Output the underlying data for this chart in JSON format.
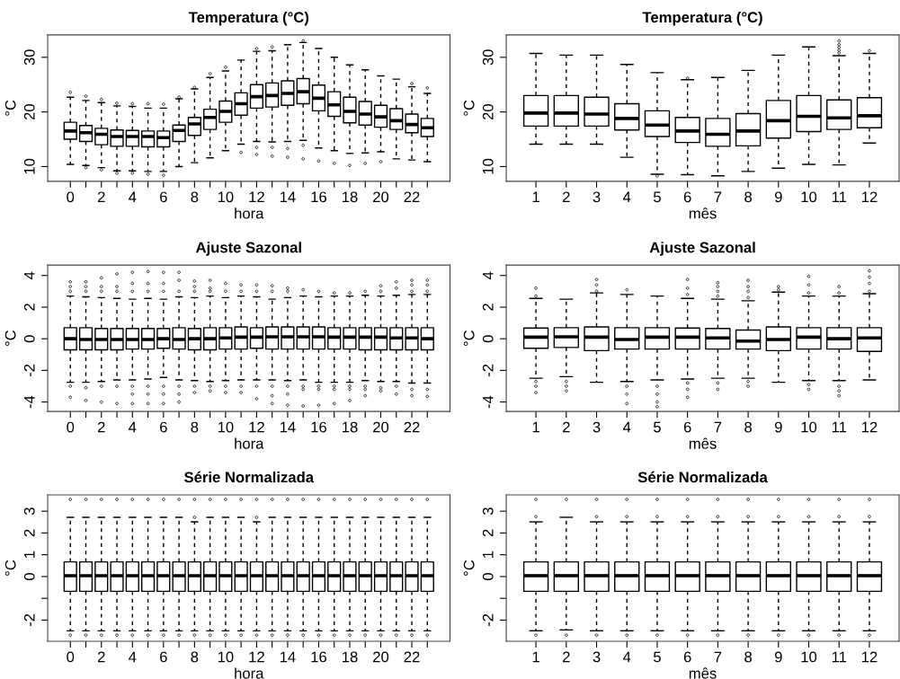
{
  "chart_data": [
    {
      "type": "box",
      "title": "Temperatura (°C)",
      "xlabel": "hora",
      "ylabel": "°C",
      "categories": [
        "0",
        null,
        "2",
        null,
        "4",
        null,
        "6",
        null,
        "8",
        null,
        "10",
        null,
        "12",
        null,
        "14",
        null,
        "16",
        null,
        "18",
        null,
        "20",
        null,
        "22",
        null
      ],
      "ylim": [
        7.3,
        34.1
      ],
      "yticks": [
        10,
        20,
        30
      ],
      "boxes": [
        {
          "low": 10.4,
          "q1": 15.0,
          "median": 16.5,
          "q3": 18.1,
          "high": 22.7,
          "outliers": [
            23.6
          ]
        },
        {
          "low": 10.2,
          "q1": 14.6,
          "median": 16.2,
          "q3": 17.5,
          "high": 22.1,
          "outliers": [
            22.9,
            9.8
          ]
        },
        {
          "low": 9.8,
          "q1": 14.0,
          "median": 15.9,
          "q3": 17.0,
          "high": 21.7,
          "outliers": [
            22.3,
            9.4
          ]
        },
        {
          "low": 9.2,
          "q1": 13.7,
          "median": 15.5,
          "q3": 16.7,
          "high": 21.1,
          "outliers": [
            21.6,
            8.8
          ]
        },
        {
          "low": 9.2,
          "q1": 13.7,
          "median": 15.5,
          "q3": 16.6,
          "high": 21.0,
          "outliers": [
            21.5,
            8.8
          ]
        },
        {
          "low": 9.1,
          "q1": 13.6,
          "median": 15.5,
          "q3": 16.5,
          "high": 20.7,
          "outliers": [
            21.5,
            8.6
          ]
        },
        {
          "low": 9.1,
          "q1": 13.6,
          "median": 15.3,
          "q3": 16.5,
          "high": 20.7,
          "outliers": [
            21.4,
            8.4
          ]
        },
        {
          "low": 10.0,
          "q1": 14.6,
          "median": 16.6,
          "q3": 17.6,
          "high": 22.4,
          "outliers": [
            22.7
          ]
        },
        {
          "low": 10.7,
          "q1": 15.7,
          "median": 17.8,
          "q3": 19.0,
          "high": 24.2,
          "outliers": [
            24.5
          ]
        },
        {
          "low": 11.6,
          "q1": 16.8,
          "median": 19.0,
          "q3": 20.5,
          "high": 26.3,
          "outliers": [
            27.0
          ]
        },
        {
          "low": 12.9,
          "q1": 18.1,
          "median": 20.1,
          "q3": 22.0,
          "high": 27.5,
          "outliers": [
            28.2
          ]
        },
        {
          "low": 14.1,
          "q1": 19.4,
          "median": 21.5,
          "q3": 23.5,
          "high": 29.5,
          "outliers": [
            12.6
          ]
        },
        {
          "low": 14.6,
          "q1": 20.7,
          "median": 22.8,
          "q3": 25.0,
          "high": 31.1,
          "outliers": [
            31.6,
            13.5,
            12.2
          ]
        },
        {
          "low": 14.5,
          "q1": 20.9,
          "median": 23.0,
          "q3": 25.3,
          "high": 31.2,
          "outliers": [
            31.9,
            13.5,
            11.9
          ]
        },
        {
          "low": 14.6,
          "q1": 21.2,
          "median": 23.4,
          "q3": 25.7,
          "high": 32.3,
          "outliers": [
            13.3,
            11.7
          ]
        },
        {
          "low": 14.8,
          "q1": 21.5,
          "median": 23.7,
          "q3": 26.1,
          "high": 32.7,
          "outliers": [
            33.0,
            13.9,
            11.4
          ]
        },
        {
          "low": 13.4,
          "q1": 20.2,
          "median": 22.5,
          "q3": 24.9,
          "high": 31.6,
          "outliers": [
            11.0
          ]
        },
        {
          "low": 12.9,
          "q1": 19.2,
          "median": 21.3,
          "q3": 23.7,
          "high": 30.0,
          "outliers": [
            10.6
          ]
        },
        {
          "low": 12.4,
          "q1": 18.0,
          "median": 20.1,
          "q3": 22.7,
          "high": 28.6,
          "outliers": [
            10.2
          ]
        },
        {
          "low": 12.5,
          "q1": 17.6,
          "median": 19.6,
          "q3": 21.9,
          "high": 27.7,
          "outliers": [
            10.6
          ]
        },
        {
          "low": 12.7,
          "q1": 17.2,
          "median": 19.1,
          "q3": 21.2,
          "high": 26.6,
          "outliers": [
            10.9
          ]
        },
        {
          "low": 11.4,
          "q1": 16.8,
          "median": 18.4,
          "q3": 20.6,
          "high": 26.0
        },
        {
          "low": 11.2,
          "q1": 16.2,
          "median": 17.7,
          "q3": 19.6,
          "high": 24.6,
          "outliers": [
            25.2
          ]
        },
        {
          "low": 10.9,
          "q1": 15.5,
          "median": 17.1,
          "q3": 18.8,
          "high": 23.4,
          "outliers": [
            24.4
          ]
        }
      ]
    },
    {
      "type": "box",
      "title": "Temperatura (°C)",
      "xlabel": "mês",
      "ylabel": "°C",
      "categories": [
        "1",
        "2",
        "3",
        "4",
        "5",
        "6",
        "7",
        "8",
        "9",
        "10",
        "11",
        "12"
      ],
      "ylim": [
        7.3,
        34.1
      ],
      "yticks": [
        10,
        20,
        30
      ],
      "boxes": [
        {
          "low": 14.1,
          "q1": 17.4,
          "median": 19.8,
          "q3": 23.0,
          "high": 30.7
        },
        {
          "low": 14.1,
          "q1": 17.4,
          "median": 19.8,
          "q3": 23.0,
          "high": 30.4
        },
        {
          "low": 14.1,
          "q1": 17.4,
          "median": 19.6,
          "q3": 22.7,
          "high": 30.4
        },
        {
          "low": 11.7,
          "q1": 16.7,
          "median": 18.8,
          "q3": 21.5,
          "high": 28.7
        },
        {
          "low": 8.6,
          "q1": 15.5,
          "median": 17.6,
          "q3": 20.2,
          "high": 27.2,
          "outliers": [
            8.3
          ]
        },
        {
          "low": 8.5,
          "q1": 14.4,
          "median": 16.5,
          "q3": 19.0,
          "high": 25.9,
          "outliers": [
            26.2
          ]
        },
        {
          "low": 8.3,
          "q1": 13.7,
          "median": 15.9,
          "q3": 18.8,
          "high": 26.3
        },
        {
          "low": 9.1,
          "q1": 13.8,
          "median": 16.5,
          "q3": 19.7,
          "high": 27.6
        },
        {
          "low": 9.7,
          "q1": 15.2,
          "median": 18.4,
          "q3": 22.1,
          "high": 30.4
        },
        {
          "low": 10.4,
          "q1": 16.4,
          "median": 19.2,
          "q3": 23.0,
          "high": 31.9
        },
        {
          "low": 10.3,
          "q1": 16.8,
          "median": 18.9,
          "q3": 22.2,
          "high": 30.3,
          "outliers": [
            30.8,
            31.3,
            31.8,
            32.3,
            33.0
          ]
        },
        {
          "low": 14.3,
          "q1": 17.1,
          "median": 19.3,
          "q3": 22.6,
          "high": 30.7,
          "outliers": [
            31.2
          ]
        }
      ]
    },
    {
      "type": "box",
      "title": "Ajuste Sazonal",
      "xlabel": "hora",
      "ylabel": "°C",
      "categories": [
        "0",
        null,
        "2",
        null,
        "4",
        null,
        "6",
        null,
        "8",
        null,
        "10",
        null,
        "12",
        null,
        "14",
        null,
        "16",
        null,
        "18",
        null,
        "20",
        null,
        "22",
        null
      ],
      "ylim": [
        -4.6,
        4.66
      ],
      "yticks": [
        -4,
        -2,
        0,
        2,
        4
      ],
      "boxes": [
        {
          "low": -2.75,
          "q1": -0.7,
          "median": 0,
          "q3": 0.7,
          "high": 2.7,
          "outliers": [
            3.0,
            3.3,
            3.6,
            -3.0,
            -3.7
          ]
        },
        {
          "low": -2.75,
          "q1": -0.7,
          "median": -0.05,
          "q3": 0.7,
          "high": 2.65,
          "outliers": [
            3.0,
            3.3,
            3.6,
            -3.1,
            -3.9
          ]
        },
        {
          "low": -2.7,
          "q1": -0.7,
          "median": -0.05,
          "q3": 0.65,
          "high": 2.6,
          "outliers": [
            3.0,
            3.3,
            3.85,
            -3.0,
            -4.0
          ]
        },
        {
          "low": -2.6,
          "q1": -0.7,
          "median": -0.05,
          "q3": 0.65,
          "high": 2.55,
          "outliers": [
            3.0,
            3.3,
            4.1,
            -3.0,
            -4.1
          ]
        },
        {
          "low": -2.6,
          "q1": -0.65,
          "median": -0.05,
          "q3": 0.65,
          "high": 2.5,
          "outliers": [
            3.0,
            3.5,
            4.2,
            -3.0,
            -3.5,
            -4.1
          ]
        },
        {
          "low": -2.55,
          "q1": -0.65,
          "median": -0.05,
          "q3": 0.65,
          "high": 2.55,
          "outliers": [
            3.0,
            3.5,
            4.25,
            -3.0,
            -3.5,
            -4.1
          ]
        },
        {
          "low": -2.45,
          "q1": -0.6,
          "median": 0,
          "q3": 0.65,
          "high": 2.5,
          "outliers": [
            3.0,
            3.5,
            4.2,
            -3.0,
            -3.5,
            -4.1
          ]
        },
        {
          "low": -2.6,
          "q1": -0.65,
          "median": -0.05,
          "q3": 0.7,
          "high": 2.65,
          "outliers": [
            3.0,
            3.7,
            4.2,
            -3.0,
            -3.5,
            -4.0
          ]
        },
        {
          "low": -2.65,
          "q1": -0.7,
          "median": 0,
          "q3": 0.65,
          "high": 2.6,
          "outliers": [
            3.0,
            3.3,
            3.65,
            -3.0,
            -3.4
          ]
        },
        {
          "low": -2.7,
          "q1": -0.7,
          "median": 0,
          "q3": 0.7,
          "high": 2.7,
          "outliers": [
            3.0,
            3.2,
            3.7,
            -3.0,
            -3.3
          ]
        },
        {
          "low": -2.65,
          "q1": -0.65,
          "median": 0.05,
          "q3": 0.7,
          "high": 2.6,
          "outliers": [
            3.0,
            3.5,
            -3.0,
            -3.4
          ]
        },
        {
          "low": -2.6,
          "q1": -0.65,
          "median": 0.1,
          "q3": 0.75,
          "high": 2.7,
          "outliers": [
            3.0,
            3.4,
            -3.0,
            -3.4
          ]
        },
        {
          "low": -2.6,
          "q1": -0.6,
          "median": 0.1,
          "q3": 0.7,
          "high": 2.65,
          "outliers": [
            3.0,
            3.4,
            -3.0,
            -3.8
          ]
        },
        {
          "low": -2.6,
          "q1": -0.65,
          "median": 0.12,
          "q3": 0.75,
          "high": 2.5,
          "outliers": [
            3.0,
            3.35,
            -3.0,
            -3.6,
            -4.1
          ]
        },
        {
          "low": -2.65,
          "q1": -0.65,
          "median": 0.12,
          "q3": 0.75,
          "high": 2.6,
          "outliers": [
            3.0,
            3.2,
            -3.0,
            -3.5,
            -4.2
          ]
        },
        {
          "low": -2.6,
          "q1": -0.65,
          "median": 0.12,
          "q3": 0.75,
          "high": 2.7,
          "outliers": [
            3.1,
            -3.0,
            -3.2,
            -4.25
          ]
        },
        {
          "low": -2.75,
          "q1": -0.65,
          "median": 0.12,
          "q3": 0.75,
          "high": 2.65,
          "outliers": [
            3.0,
            -3.0,
            -3.2,
            -4.2
          ]
        },
        {
          "low": -2.75,
          "q1": -0.65,
          "median": 0.1,
          "q3": 0.7,
          "high": 2.7,
          "outliers": [
            2.9,
            -3.0,
            -3.2,
            -4.1
          ]
        },
        {
          "low": -2.75,
          "q1": -0.65,
          "median": 0.1,
          "q3": 0.7,
          "high": 2.7,
          "outliers": [
            2.9,
            -3.0,
            -3.2,
            -3.9
          ]
        },
        {
          "low": -2.65,
          "q1": -0.7,
          "median": 0.1,
          "q3": 0.7,
          "high": 2.75,
          "outliers": [
            3.0,
            -3.0,
            -3.2,
            -3.6
          ]
        },
        {
          "low": -2.7,
          "q1": -0.7,
          "median": 0.1,
          "q3": 0.7,
          "high": 2.7,
          "outliers": [
            3.0,
            3.35,
            -3.1,
            -3.3
          ]
        },
        {
          "low": -2.7,
          "q1": -0.7,
          "median": 0.05,
          "q3": 0.7,
          "high": 2.75,
          "outliers": [
            3.2,
            3.6,
            -3.0,
            -3.5
          ]
        },
        {
          "low": -2.8,
          "q1": -0.7,
          "median": 0.05,
          "q3": 0.7,
          "high": 2.8,
          "outliers": [
            3.0,
            3.4,
            3.7,
            -3.2,
            -3.6
          ]
        },
        {
          "low": -2.8,
          "q1": -0.7,
          "median": 0,
          "q3": 0.7,
          "high": 2.8,
          "outliers": [
            3.0,
            3.4,
            3.7,
            -3.2,
            -3.65
          ]
        }
      ]
    },
    {
      "type": "box",
      "title": "Ajuste Sazonal",
      "xlabel": "mês",
      "ylabel": "°C",
      "categories": [
        "1",
        "2",
        "3",
        "4",
        "5",
        "6",
        "7",
        "8",
        "9",
        "10",
        "11",
        "12"
      ],
      "ylim": [
        -4.6,
        4.66
      ],
      "yticks": [
        -4,
        -2,
        0,
        2,
        4
      ],
      "boxes": [
        {
          "low": -2.5,
          "q1": -0.6,
          "median": 0.1,
          "q3": 0.68,
          "high": 2.55,
          "outliers": [
            2.7,
            3.2,
            -2.7,
            -3.0,
            -3.4
          ]
        },
        {
          "low": -2.4,
          "q1": -0.55,
          "median": 0.12,
          "q3": 0.7,
          "high": 2.5,
          "outliers": [
            -2.7,
            -3.0,
            -3.3
          ]
        },
        {
          "low": -2.75,
          "q1": -0.75,
          "median": 0.1,
          "q3": 0.75,
          "high": 2.9,
          "outliers": [
            3.0,
            3.4,
            3.75
          ]
        },
        {
          "low": -2.7,
          "q1": -0.65,
          "median": -0.05,
          "q3": 0.7,
          "high": 2.8,
          "outliers": [
            3.1,
            -3.0,
            -3.5,
            -4.1
          ]
        },
        {
          "low": -2.6,
          "q1": -0.65,
          "median": 0.1,
          "q3": 0.7,
          "high": 2.7,
          "outliers": [
            -3.0,
            -3.5,
            -4.0,
            -4.3
          ]
        },
        {
          "low": -2.55,
          "q1": -0.65,
          "median": 0.1,
          "q3": 0.68,
          "high": 2.55,
          "outliers": [
            2.8,
            3.2,
            3.75,
            -2.8,
            -3.2,
            -3.7
          ]
        },
        {
          "low": -2.5,
          "q1": -0.65,
          "median": 0.05,
          "q3": 0.65,
          "high": 2.5,
          "outliers": [
            2.7,
            3.0,
            3.3,
            3.55,
            -2.8,
            -3.2
          ]
        },
        {
          "low": -2.5,
          "q1": -0.65,
          "median": -0.15,
          "q3": 0.55,
          "high": 2.4,
          "outliers": [
            2.6,
            3.0,
            3.3,
            3.7,
            -2.7,
            -3.0
          ]
        },
        {
          "low": -2.75,
          "q1": -0.75,
          "median": -0.05,
          "q3": 0.75,
          "high": 2.95,
          "outliers": [
            3.1,
            3.3
          ]
        },
        {
          "low": -2.65,
          "q1": -0.65,
          "median": 0.1,
          "q3": 0.7,
          "high": 2.7,
          "outliers": [
            2.9,
            3.4,
            3.95,
            -2.9,
            -3.2
          ]
        },
        {
          "low": -2.65,
          "q1": -0.65,
          "median": 0,
          "q3": 0.7,
          "high": 2.7,
          "outliers": [
            2.9,
            3.3,
            -3.0,
            -3.3,
            -3.6
          ]
        },
        {
          "low": -2.6,
          "q1": -0.8,
          "median": 0.05,
          "q3": 0.7,
          "high": 2.85,
          "outliers": [
            3.0,
            3.5,
            3.9,
            4.3
          ]
        }
      ]
    },
    {
      "type": "box",
      "title": "Série Normalizada",
      "xlabel": "hora",
      "ylabel": "°C",
      "categories": [
        "0",
        null,
        "2",
        null,
        "4",
        null,
        "6",
        null,
        "8",
        null,
        "10",
        null,
        "12",
        null,
        "14",
        null,
        "16",
        null,
        "18",
        null,
        "20",
        null,
        "22",
        null
      ],
      "ylim": [
        -2.97,
        3.75
      ],
      "yticks": [
        -2,
        {
          "value": -1,
          "label": null
        },
        0,
        1,
        2,
        3
      ],
      "boxes": [
        {
          "low": -2.49,
          "q1": -0.68,
          "median": 0.04,
          "q3": 0.67,
          "high": 2.72,
          "outliers": [
            3.54,
            -2.69
          ]
        },
        {
          "low": -2.49,
          "q1": -0.68,
          "median": 0.04,
          "q3": 0.67,
          "high": 2.72,
          "outliers": [
            3.54,
            -2.69
          ]
        },
        {
          "low": -2.49,
          "q1": -0.68,
          "median": 0.04,
          "q3": 0.67,
          "high": 2.72,
          "outliers": [
            3.54,
            -2.69
          ]
        },
        {
          "low": -2.49,
          "q1": -0.68,
          "median": 0.04,
          "q3": 0.67,
          "high": 2.72,
          "outliers": [
            3.54,
            -2.69
          ]
        },
        {
          "low": -2.49,
          "q1": -0.68,
          "median": 0.04,
          "q3": 0.67,
          "high": 2.72,
          "outliers": [
            3.54,
            -2.69
          ]
        },
        {
          "low": -2.49,
          "q1": -0.68,
          "median": 0.04,
          "q3": 0.67,
          "high": 2.72,
          "outliers": [
            3.54,
            -2.69
          ]
        },
        {
          "low": -2.49,
          "q1": -0.68,
          "median": 0.04,
          "q3": 0.67,
          "high": 2.72,
          "outliers": [
            3.54,
            -2.69
          ]
        },
        {
          "low": -2.49,
          "q1": -0.68,
          "median": 0.04,
          "q3": 0.67,
          "high": 2.72,
          "outliers": [
            3.54,
            -2.69
          ]
        },
        {
          "low": -2.49,
          "q1": -0.68,
          "median": 0.04,
          "q3": 0.67,
          "high": 2.51,
          "outliers": [
            2.72,
            3.54,
            -2.69
          ]
        },
        {
          "low": -2.49,
          "q1": -0.68,
          "median": 0.04,
          "q3": 0.67,
          "high": 2.72,
          "outliers": [
            3.54,
            -2.69
          ]
        },
        {
          "low": -2.49,
          "q1": -0.68,
          "median": 0.04,
          "q3": 0.67,
          "high": 2.72,
          "outliers": [
            3.54,
            -2.69
          ]
        },
        {
          "low": -2.49,
          "q1": -0.68,
          "median": 0.04,
          "q3": 0.67,
          "high": 2.72,
          "outliers": [
            3.54,
            -2.69
          ]
        },
        {
          "low": -2.49,
          "q1": -0.68,
          "median": 0.04,
          "q3": 0.67,
          "high": 2.51,
          "outliers": [
            2.72,
            3.54,
            -2.69
          ]
        },
        {
          "low": -2.49,
          "q1": -0.68,
          "median": 0.04,
          "q3": 0.67,
          "high": 2.72,
          "outliers": [
            3.54,
            -2.69
          ]
        },
        {
          "low": -2.49,
          "q1": -0.68,
          "median": 0.04,
          "q3": 0.67,
          "high": 2.72,
          "outliers": [
            3.54,
            -2.69
          ]
        },
        {
          "low": -2.49,
          "q1": -0.68,
          "median": 0.04,
          "q3": 0.67,
          "high": 2.72,
          "outliers": [
            3.54,
            -2.69
          ]
        },
        {
          "low": -2.49,
          "q1": -0.68,
          "median": 0.04,
          "q3": 0.67,
          "high": 2.72,
          "outliers": [
            3.54,
            -2.69
          ]
        },
        {
          "low": -2.49,
          "q1": -0.68,
          "median": 0.04,
          "q3": 0.67,
          "high": 2.72,
          "outliers": [
            3.54,
            -2.69
          ]
        },
        {
          "low": -2.49,
          "q1": -0.68,
          "median": 0.04,
          "q3": 0.67,
          "high": 2.72,
          "outliers": [
            3.54,
            -2.69
          ]
        },
        {
          "low": -2.49,
          "q1": -0.68,
          "median": 0.04,
          "q3": 0.67,
          "high": 2.72,
          "outliers": [
            3.54,
            -2.69
          ]
        },
        {
          "low": -2.49,
          "q1": -0.68,
          "median": 0.04,
          "q3": 0.67,
          "high": 2.72,
          "outliers": [
            3.54,
            -2.69
          ]
        },
        {
          "low": -2.49,
          "q1": -0.68,
          "median": 0.04,
          "q3": 0.67,
          "high": 2.72,
          "outliers": [
            3.54,
            -2.69
          ]
        },
        {
          "low": -2.49,
          "q1": -0.68,
          "median": 0.04,
          "q3": 0.67,
          "high": 2.72,
          "outliers": [
            3.54,
            -2.69
          ]
        },
        {
          "low": -2.49,
          "q1": -0.68,
          "median": 0.04,
          "q3": 0.67,
          "high": 2.72,
          "outliers": [
            3.54,
            -2.69
          ]
        }
      ]
    },
    {
      "type": "box",
      "title": "Série Normalizada",
      "xlabel": "mês",
      "ylabel": "°C",
      "categories": [
        "1",
        "2",
        "3",
        "4",
        "5",
        "6",
        "7",
        "8",
        "9",
        "10",
        "11",
        "12"
      ],
      "ylim": [
        -2.97,
        3.75
      ],
      "yticks": [
        -2,
        {
          "value": -1,
          "label": null
        },
        0,
        1,
        2,
        3
      ],
      "boxes": [
        {
          "low": -2.49,
          "q1": -0.68,
          "median": 0.04,
          "q3": 0.67,
          "high": 2.51,
          "outliers": [
            2.75,
            3.54,
            -2.69
          ]
        },
        {
          "low": -2.45,
          "q1": -0.68,
          "median": 0.04,
          "q3": 0.67,
          "high": 2.72,
          "outliers": [
            3.54,
            -2.69
          ]
        },
        {
          "low": -2.49,
          "q1": -0.68,
          "median": 0.04,
          "q3": 0.67,
          "high": 2.51,
          "outliers": [
            2.75,
            3.54,
            -2.69
          ]
        },
        {
          "low": -2.49,
          "q1": -0.68,
          "median": 0.04,
          "q3": 0.67,
          "high": 2.51,
          "outliers": [
            2.75,
            3.54,
            -2.69
          ]
        },
        {
          "low": -2.49,
          "q1": -0.68,
          "median": 0.04,
          "q3": 0.67,
          "high": 2.51,
          "outliers": [
            2.75,
            3.54,
            -2.69
          ]
        },
        {
          "low": -2.49,
          "q1": -0.68,
          "median": 0.04,
          "q3": 0.67,
          "high": 2.51,
          "outliers": [
            2.75,
            3.54,
            -2.69
          ]
        },
        {
          "low": -2.49,
          "q1": -0.68,
          "median": 0.04,
          "q3": 0.67,
          "high": 2.51,
          "outliers": [
            2.75,
            3.54,
            -2.69
          ]
        },
        {
          "low": -2.49,
          "q1": -0.68,
          "median": 0.04,
          "q3": 0.67,
          "high": 2.51,
          "outliers": [
            2.75,
            3.54,
            -2.69
          ]
        },
        {
          "low": -2.49,
          "q1": -0.68,
          "median": 0.04,
          "q3": 0.67,
          "high": 2.51,
          "outliers": [
            2.75,
            3.54,
            -2.69
          ]
        },
        {
          "low": -2.49,
          "q1": -0.68,
          "median": 0.04,
          "q3": 0.67,
          "high": 2.51,
          "outliers": [
            2.75,
            3.54,
            -2.69
          ]
        },
        {
          "low": -2.49,
          "q1": -0.68,
          "median": 0.04,
          "q3": 0.67,
          "high": 2.51,
          "outliers": [
            2.75,
            3.54,
            -2.69
          ]
        },
        {
          "low": -2.49,
          "q1": -0.68,
          "median": 0.04,
          "q3": 0.67,
          "high": 2.51,
          "outliers": [
            2.75,
            3.54,
            -2.69
          ]
        }
      ]
    }
  ]
}
